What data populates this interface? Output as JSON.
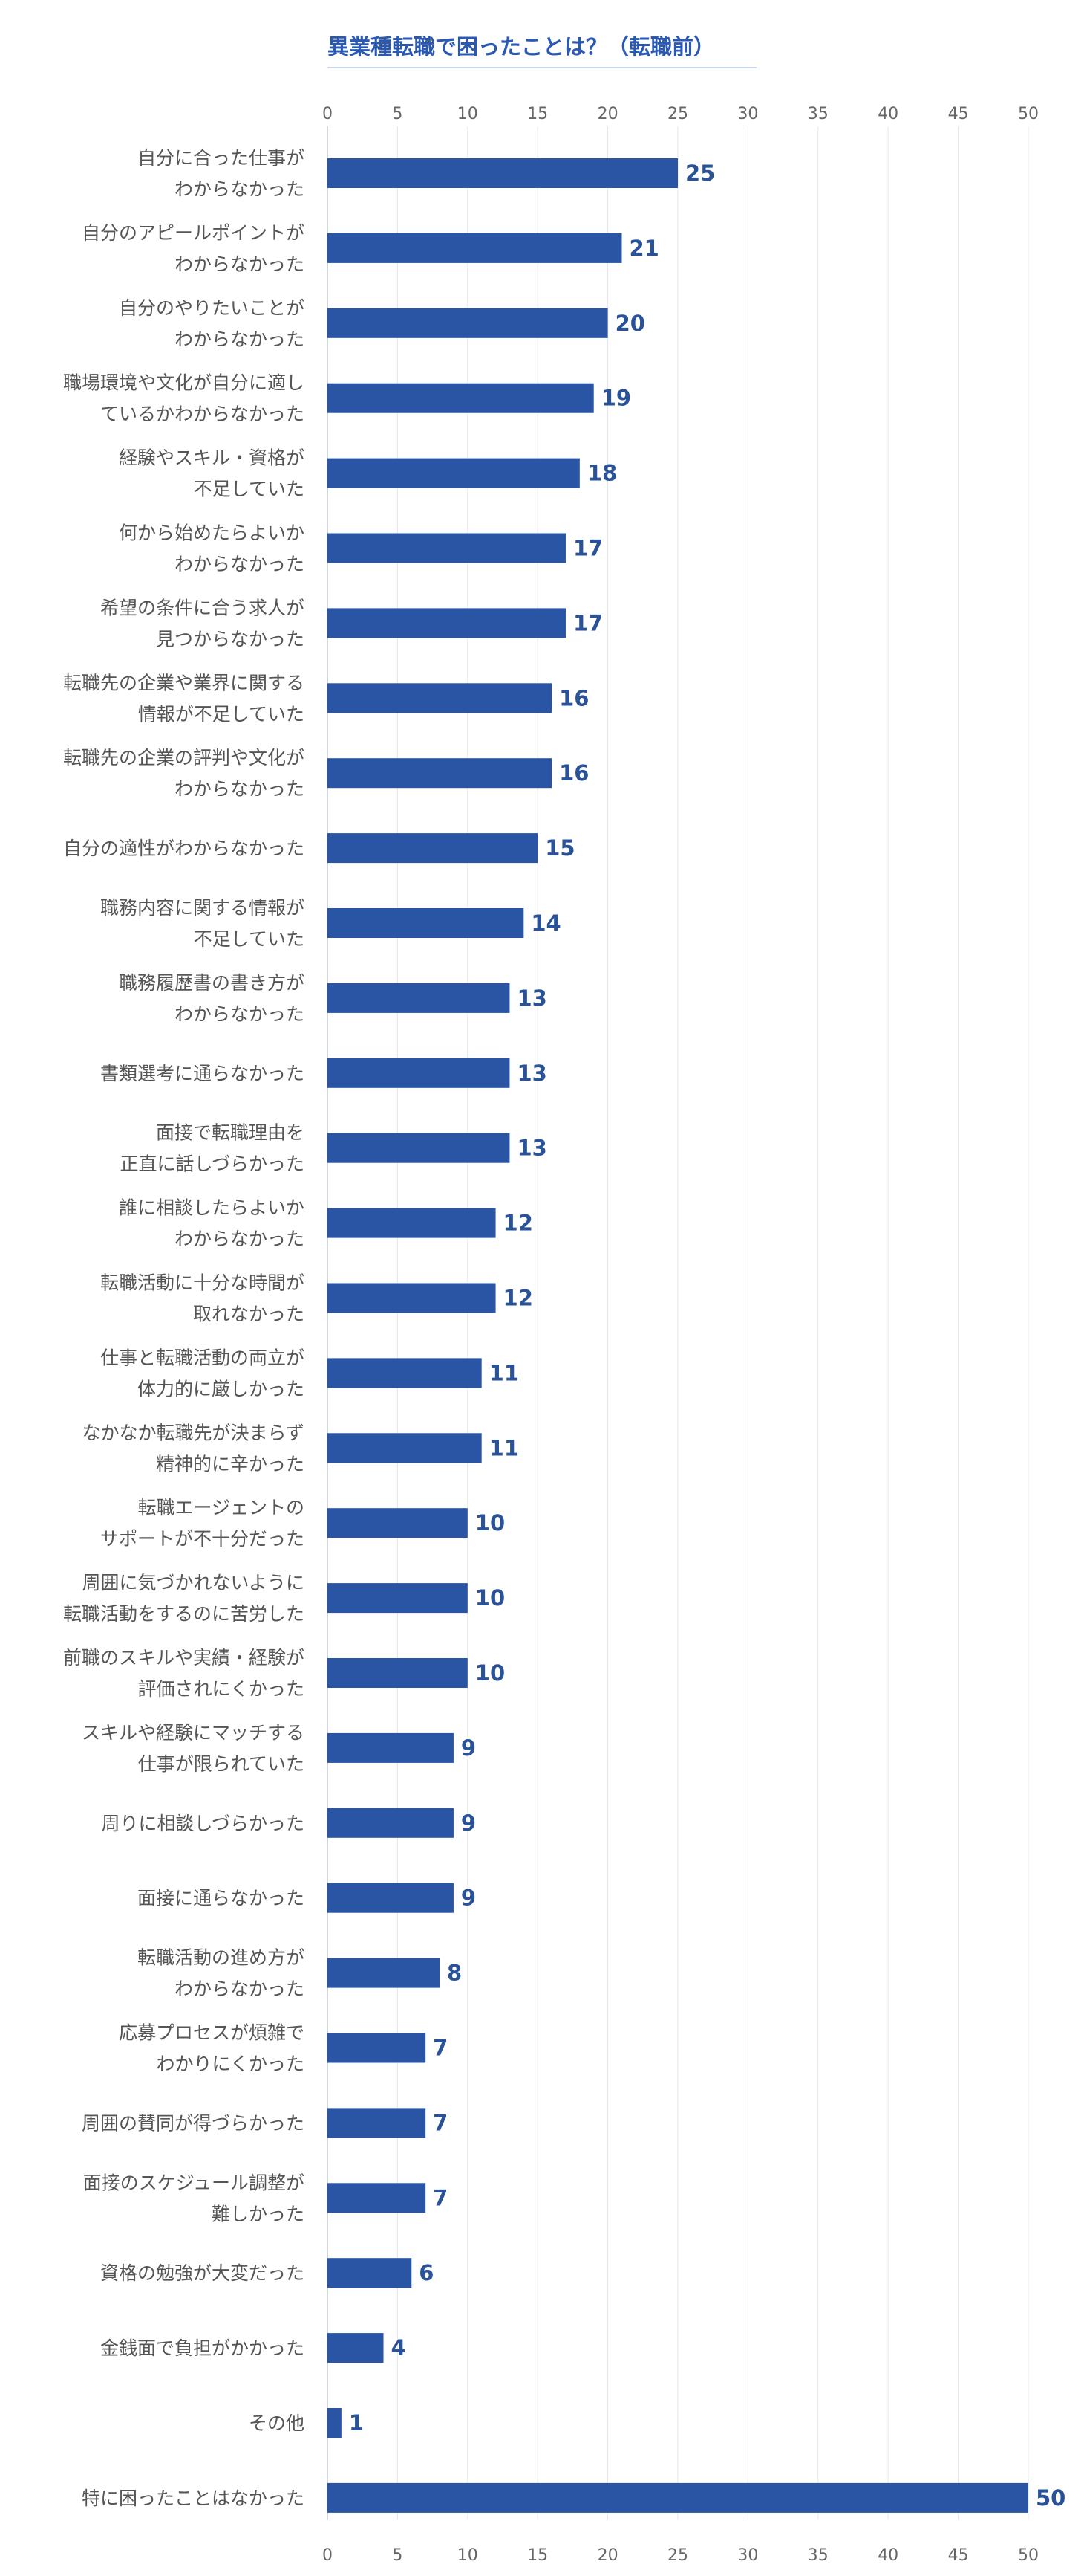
{
  "chart_data": {
    "type": "bar",
    "orientation": "horizontal",
    "title": "異業種転職で困ったことは？（転職前）",
    "xlim": [
      0,
      50
    ],
    "ticks": [
      0,
      5,
      10,
      15,
      20,
      25,
      30,
      35,
      40,
      45,
      50
    ],
    "grid": true,
    "bar_color": "#2a55a4",
    "title_color": "#2a59b3",
    "categories": [
      [
        "自分に合った仕事が",
        "わからなかった"
      ],
      [
        "自分のアピールポイントが",
        "わからなかった"
      ],
      [
        "自分のやりたいことが",
        "わからなかった"
      ],
      [
        "職場環境や文化が自分に適し",
        "ているかわからなかった"
      ],
      [
        "経験やスキル・資格が",
        "不足していた"
      ],
      [
        "何から始めたらよいか",
        "わからなかった"
      ],
      [
        "希望の条件に合う求人が",
        "見つからなかった"
      ],
      [
        "転職先の企業や業界に関する",
        "情報が不足していた"
      ],
      [
        "転職先の企業の評判や文化が",
        "わからなかった"
      ],
      [
        "自分の適性がわからなかった"
      ],
      [
        "職務内容に関する情報が",
        "不足していた"
      ],
      [
        "職務履歴書の書き方が",
        "わからなかった"
      ],
      [
        "書類選考に通らなかった"
      ],
      [
        "面接で転職理由を",
        "正直に話しづらかった"
      ],
      [
        "誰に相談したらよいか",
        "わからなかった"
      ],
      [
        "転職活動に十分な時間が",
        "取れなかった"
      ],
      [
        "仕事と転職活動の両立が",
        "体力的に厳しかった"
      ],
      [
        "なかなか転職先が決まらず",
        "精神的に辛かった"
      ],
      [
        "転職エージェントの",
        "サポートが不十分だった"
      ],
      [
        "周囲に気づかれないように",
        "転職活動をするのに苦労した"
      ],
      [
        "前職のスキルや実績・経験が",
        "評価されにくかった"
      ],
      [
        "スキルや経験にマッチする",
        "仕事が限られていた"
      ],
      [
        "周りに相談しづらかった"
      ],
      [
        "面接に通らなかった"
      ],
      [
        "転職活動の進め方が",
        "わからなかった"
      ],
      [
        "応募プロセスが煩雑で",
        "わかりにくかった"
      ],
      [
        "周囲の賛同が得づらかった"
      ],
      [
        "面接のスケジュール調整が",
        "難しかった"
      ],
      [
        "資格の勉強が大変だった"
      ],
      [
        "金銭面で負担がかかった"
      ],
      [
        "その他"
      ],
      [
        "特に困ったことはなかった"
      ]
    ],
    "values": [
      25,
      21,
      20,
      19,
      18,
      17,
      17,
      16,
      16,
      15,
      14,
      13,
      13,
      13,
      12,
      12,
      11,
      11,
      10,
      10,
      10,
      9,
      9,
      9,
      8,
      7,
      7,
      7,
      6,
      4,
      1,
      50
    ]
  }
}
